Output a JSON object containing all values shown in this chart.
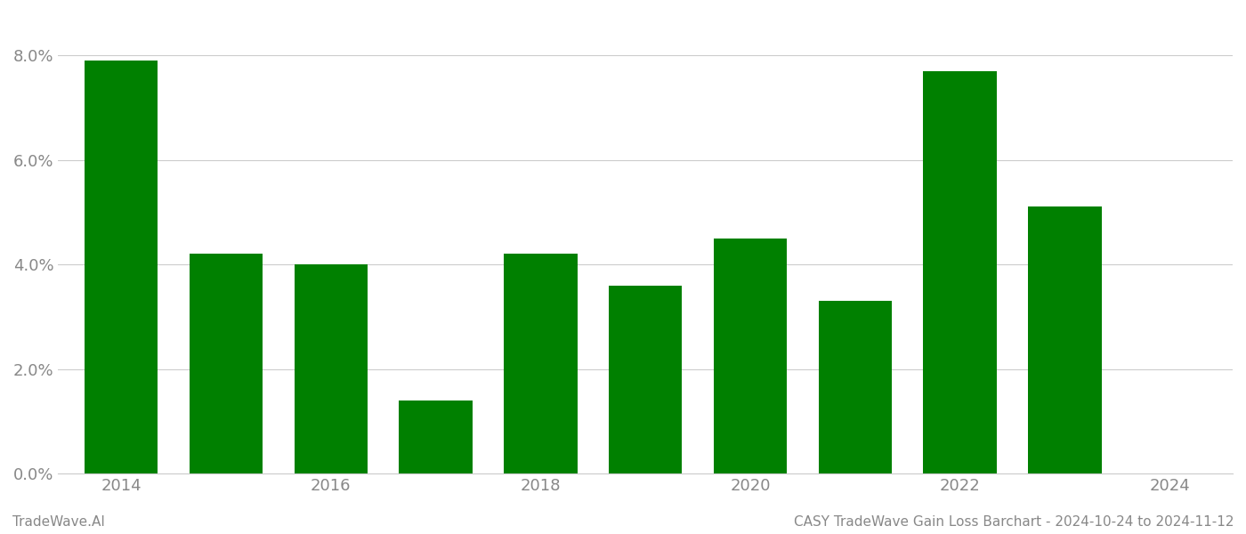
{
  "years": [
    2014,
    2015,
    2016,
    2017,
    2018,
    2019,
    2020,
    2021,
    2022,
    2023
  ],
  "values": [
    0.079,
    0.042,
    0.04,
    0.014,
    0.042,
    0.036,
    0.045,
    0.033,
    0.077,
    0.051
  ],
  "bar_color": "#008000",
  "background_color": "#ffffff",
  "grid_color": "#cccccc",
  "tick_label_color": "#888888",
  "ylim": [
    0,
    0.088
  ],
  "yticks": [
    0.0,
    0.02,
    0.04,
    0.06,
    0.08
  ],
  "xlim": [
    2013.4,
    2024.6
  ],
  "xticks_shown": [
    2014,
    2016,
    2018,
    2020,
    2022,
    2024
  ],
  "footer_left": "TradeWave.AI",
  "footer_right": "CASY TradeWave Gain Loss Barchart - 2024-10-24 to 2024-11-12",
  "footer_color": "#888888",
  "footer_fontsize": 11,
  "tick_fontsize": 13,
  "bar_width": 0.7
}
